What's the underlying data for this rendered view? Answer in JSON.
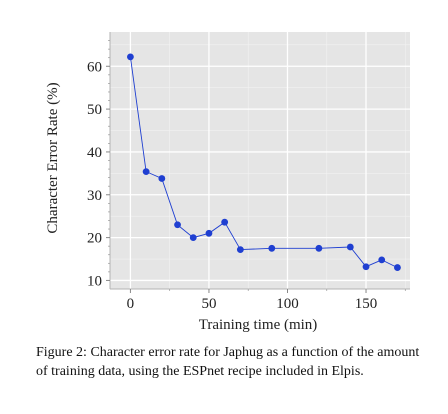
{
  "chart_data": {
    "type": "line",
    "xlabel": "Training time (min)",
    "ylabel": "Character Error Rate (%)",
    "xlim": [
      -13,
      178
    ],
    "ylim": [
      8,
      68
    ],
    "xticks": [
      0,
      50,
      100,
      150
    ],
    "yticks": [
      10,
      20,
      30,
      40,
      50,
      60
    ],
    "grid": true,
    "background": "#e5e5e5",
    "series": [
      {
        "color": "#1f3fd1",
        "x": [
          0,
          10,
          20,
          30,
          40,
          50,
          60,
          70,
          90,
          120,
          140,
          150,
          160,
          170
        ],
        "y": [
          62.2,
          35.4,
          33.8,
          23.0,
          20.0,
          21.0,
          23.6,
          17.2,
          17.5,
          17.5,
          17.8,
          13.2,
          14.8,
          13.0
        ]
      }
    ]
  },
  "caption": "Figure 2: Character error rate for Japhug as a function of the amount of training data, using the ESPnet recipe included in Elpis."
}
